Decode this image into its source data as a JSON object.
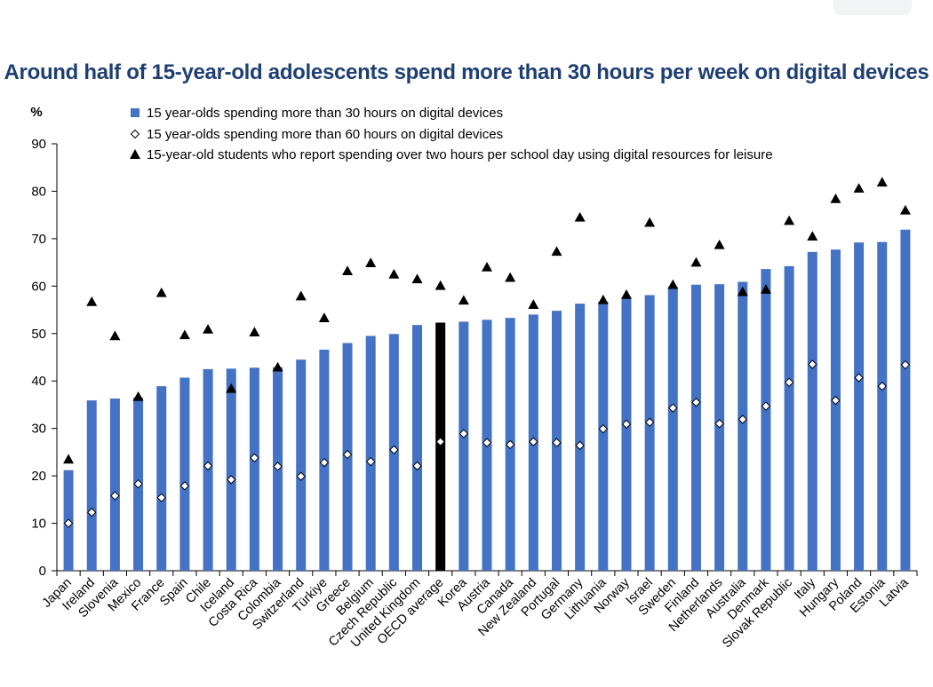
{
  "title": "Around half of 15-year-old adolescents spend more than 30 hours per week on digital devices",
  "colors": {
    "bar": "#4472c4",
    "highlight": "#000000",
    "title": "#1f3f73"
  },
  "chart_data": {
    "type": "bar",
    "title": "Around half of 15-year-old adolescents spend more than 30 hours per week on digital devices",
    "ylabel": "%",
    "xlabel": "",
    "ylim": [
      0,
      90
    ],
    "yticks": [
      0,
      10,
      20,
      30,
      40,
      50,
      60,
      70,
      80,
      90
    ],
    "grid": false,
    "legend_position": "top",
    "highlight_category": "OECD average",
    "categories": [
      "Japan",
      "Ireland",
      "Slovenia",
      "Mexico",
      "France",
      "Spain",
      "Chile",
      "Iceland",
      "Costa Rica",
      "Colombia",
      "Switzerland",
      "Türkiye",
      "Greece",
      "Belgium",
      "Czech Republic",
      "United Kingdom",
      "OECD average",
      "Korea",
      "Austria",
      "Canada",
      "New Zealand",
      "Portugal",
      "Germany",
      "Lithuania",
      "Norway",
      "Israel",
      "Sweden",
      "Finland",
      "Netherlands",
      "Australia",
      "Denmark",
      "Slovak Republic",
      "Italy",
      "Hungary",
      "Poland",
      "Estonia",
      "Latvia"
    ],
    "series": [
      {
        "name": "15 year-olds spending more than 30 hours on digital devices",
        "mark": "bar",
        "values": [
          21.2,
          35.9,
          36.3,
          36.5,
          38.9,
          40.7,
          42.5,
          42.6,
          42.8,
          42.9,
          44.5,
          46.6,
          48,
          49.5,
          49.9,
          51.8,
          52.3,
          52.5,
          52.9,
          53.3,
          54,
          54.8,
          56.3,
          56.7,
          57.4,
          58.1,
          59.8,
          60.3,
          60.4,
          60.9,
          63.6,
          64.2,
          67.2,
          67.7,
          69.2,
          69.3,
          71.9
        ]
      },
      {
        "name": "15 year-olds spending more than 60 hours on digital devices",
        "mark": "diamond",
        "values": [
          10,
          12.3,
          15.8,
          18.3,
          15.4,
          17.9,
          22.1,
          19.2,
          23.8,
          22,
          19.9,
          22.8,
          24.5,
          23,
          25.5,
          22.1,
          27.2,
          28.9,
          27,
          26.6,
          27.2,
          27,
          26.4,
          29.9,
          30.9,
          31.3,
          34.3,
          35.5,
          31,
          31.9,
          34.7,
          39.7,
          43.5,
          35.9,
          40.7,
          38.9,
          43.4
        ]
      },
      {
        "name": "15-year-old students who report spending over two hours per school day using digital resources for leisure",
        "mark": "triangle",
        "values": [
          23.5,
          56.7,
          49.5,
          36.7,
          58.6,
          49.7,
          50.9,
          38.4,
          50.3,
          42.9,
          57.9,
          53.3,
          63.2,
          64.9,
          62.5,
          61.5,
          60.1,
          57,
          64,
          61.8,
          56.1,
          67.3,
          74.5,
          57.1,
          58.2,
          73.4,
          60.3,
          65,
          68.7,
          58.8,
          59.3,
          73.8,
          70.5,
          78.4,
          80.6,
          81.9,
          76
        ]
      }
    ]
  }
}
